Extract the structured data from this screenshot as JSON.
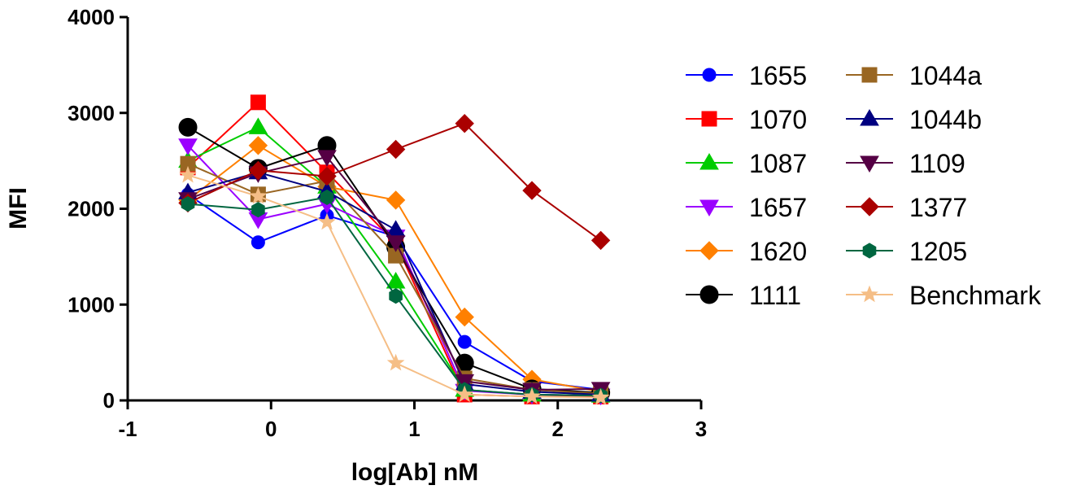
{
  "chart_data": {
    "type": "line",
    "title": "",
    "xlabel": "log[Ab] nM",
    "ylabel": "MFI",
    "xlim": [
      -1,
      3
    ],
    "ylim": [
      0,
      4000
    ],
    "xticks": [
      "-1",
      "0",
      "1",
      "2",
      "3"
    ],
    "yticks": [
      "0",
      "1000",
      "2000",
      "3000",
      "4000"
    ],
    "grid": false,
    "legend_position": "right",
    "x": [
      -0.58,
      -0.09,
      0.39,
      0.87,
      1.35,
      1.82,
      2.3
    ],
    "series": [
      {
        "name": "1655",
        "color": "#0000FF",
        "marker": "circle",
        "values": [
          2150,
          1650,
          1930,
          1710,
          610,
          200,
          110
        ]
      },
      {
        "name": "1070",
        "color": "#FF0000",
        "marker": "square",
        "values": [
          2430,
          3110,
          2380,
          1640,
          60,
          40,
          40
        ]
      },
      {
        "name": "1087",
        "color": "#00CC00",
        "marker": "triangle-up",
        "values": [
          2500,
          2850,
          2230,
          1240,
          110,
          60,
          50
        ]
      },
      {
        "name": "1657",
        "color": "#9B00FF",
        "marker": "triangle-down",
        "values": [
          2660,
          1890,
          2050,
          1710,
          100,
          60,
          50
        ]
      },
      {
        "name": "1620",
        "color": "#FF8000",
        "marker": "diamond",
        "values": [
          2090,
          2660,
          2230,
          2090,
          870,
          220,
          90
        ]
      },
      {
        "name": "1111",
        "color": "#000000",
        "marker": "circle",
        "values": [
          2850,
          2420,
          2660,
          1600,
          390,
          120,
          80
        ]
      },
      {
        "name": "1044a",
        "color": "#996622",
        "marker": "square",
        "values": [
          2470,
          2150,
          2290,
          1510,
          230,
          110,
          70
        ]
      },
      {
        "name": "1044b",
        "color": "#000080",
        "marker": "triangle-up",
        "values": [
          2170,
          2380,
          2180,
          1780,
          170,
          90,
          60
        ]
      },
      {
        "name": "1109",
        "color": "#550044",
        "marker": "triangle-down",
        "values": [
          2100,
          2370,
          2540,
          1650,
          200,
          110,
          120
        ]
      },
      {
        "name": "1377",
        "color": "#AA0000",
        "marker": "diamond",
        "values": [
          2060,
          2400,
          2340,
          2620,
          2890,
          2190,
          1670
        ]
      },
      {
        "name": "1205",
        "color": "#006640",
        "marker": "hexagon",
        "values": [
          2050,
          1990,
          2120,
          1090,
          110,
          60,
          50
        ]
      },
      {
        "name": "Benchmark",
        "color": "#F5BE86",
        "marker": "star",
        "values": [
          2350,
          2130,
          1860,
          390,
          60,
          40,
          30
        ]
      }
    ]
  }
}
